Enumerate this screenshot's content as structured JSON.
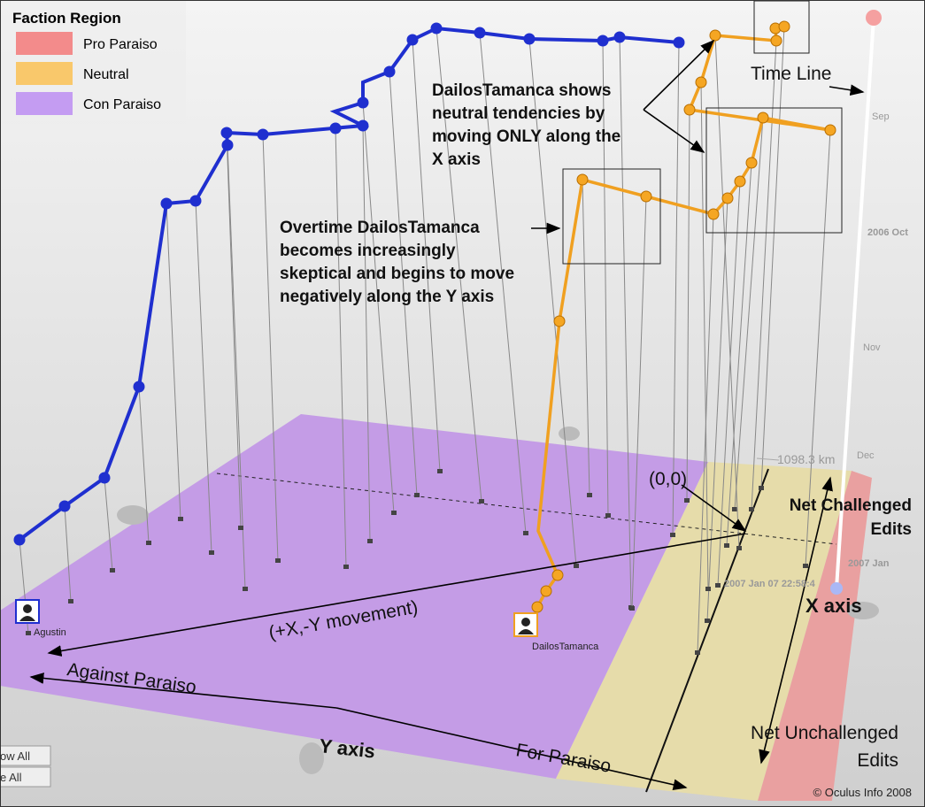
{
  "legend": {
    "title": "Faction Region",
    "items": [
      {
        "label": "Pro Paraiso",
        "color": "#f38b8b"
      },
      {
        "label": "Neutral",
        "color": "#f9c86b"
      },
      {
        "label": "Con Paraiso",
        "color": "#c49cf2"
      }
    ]
  },
  "annotations": {
    "time_line": "Time Line",
    "neutral_note": [
      "DailosTamanca shows",
      "neutral tendencies  by",
      "moving ONLY along the",
      "X axis"
    ],
    "skeptical_note": [
      "Overtime DailosTamanca",
      "becomes increasingly",
      "skeptical  and begins to  move",
      "negatively along the Y axis"
    ],
    "origin": "(0,0)",
    "net_challenged": [
      "Net Challenged",
      "Edits"
    ],
    "movement": "(+X,-Y movement)",
    "x_axis": "X axis",
    "against": "Against Paraiso",
    "y_axis": "Y axis",
    "for": "For Paraiso",
    "net_unchallenged": [
      "Net Unchallenged",
      "Edits"
    ]
  },
  "timeline": {
    "labels": [
      "Sep",
      "2006 Oct",
      "Nov",
      "Dec",
      "2007 Jan"
    ],
    "current": "2007 Jan 07 22:58:4",
    "distance": "1098.3 km"
  },
  "users": [
    "Agustin",
    "DailosTamanca"
  ],
  "buttons": [
    "ow All",
    "e All"
  ],
  "copyright": "© Oculus Info 2008"
}
